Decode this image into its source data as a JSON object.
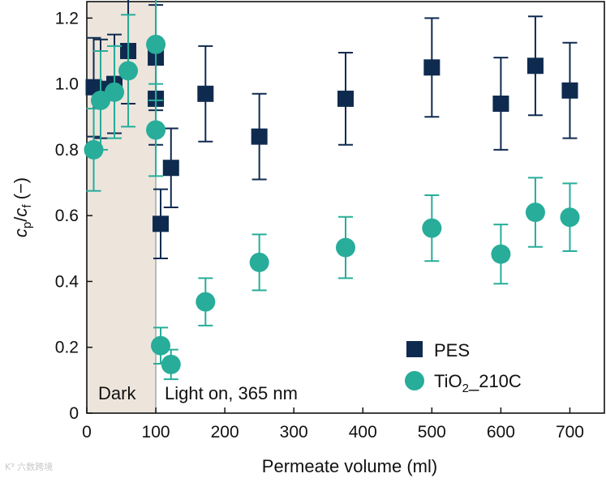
{
  "chart_data": {
    "type": "scatter",
    "xlabel": "Permeate volume (ml)",
    "ylabel": {
      "c1": "c",
      "s1": "p",
      "sep": "/",
      "c2": "c",
      "s2": "f",
      "unit": " (−)"
    },
    "xlim": [
      0,
      750
    ],
    "ylim": [
      0,
      1.25
    ],
    "x_ticks": [
      "0",
      "100",
      "200",
      "300",
      "400",
      "500",
      "600",
      "700"
    ],
    "x_tick_values": [
      0,
      100,
      200,
      300,
      400,
      500,
      600,
      700
    ],
    "y_ticks": [
      "0",
      "0.2",
      "0.4",
      "0.6",
      "0.8",
      "1.0",
      "1.2"
    ],
    "y_tick_values": [
      0,
      0.2,
      0.4,
      0.6,
      0.8,
      1.0,
      1.2
    ],
    "grid": false,
    "legend_position": "bottom-right",
    "shaded_region": {
      "x": [
        0,
        100
      ],
      "color": "#ede5dc"
    },
    "annotations": {
      "dark": "Dark",
      "light": "Light on, 365 nm"
    },
    "series": [
      {
        "name": "PES",
        "marker": "square",
        "color": "#0f2a4f",
        "points": [
          {
            "x": 10,
            "y": 0.99,
            "err": 0.15
          },
          {
            "x": 20,
            "y": 0.985,
            "err": 0.15
          },
          {
            "x": 40,
            "y": 1.0,
            "err": 0.15
          },
          {
            "x": 60,
            "y": 1.1,
            "err": 0.16
          },
          {
            "x": 100,
            "y": 1.08,
            "err": 0.16
          },
          {
            "x": 100,
            "y": 0.955,
            "err": 0.14
          },
          {
            "x": 107,
            "y": 0.575,
            "err": 0.105
          },
          {
            "x": 122,
            "y": 0.745,
            "err": 0.12
          },
          {
            "x": 172,
            "y": 0.97,
            "err": 0.145
          },
          {
            "x": 250,
            "y": 0.84,
            "err": 0.13
          },
          {
            "x": 375,
            "y": 0.955,
            "err": 0.14
          },
          {
            "x": 500,
            "y": 1.05,
            "err": 0.15
          },
          {
            "x": 600,
            "y": 0.94,
            "err": 0.14
          },
          {
            "x": 650,
            "y": 1.055,
            "err": 0.15
          },
          {
            "x": 700,
            "y": 0.98,
            "err": 0.145
          }
        ]
      },
      {
        "name": "TiO2_210C",
        "marker": "circle",
        "color": "#27ad9a",
        "points": [
          {
            "x": 10,
            "y": 0.8,
            "err": 0.125
          },
          {
            "x": 20,
            "y": 0.95,
            "err": 0.15
          },
          {
            "x": 40,
            "y": 0.975,
            "err": 0.14
          },
          {
            "x": 60,
            "y": 1.04,
            "err": 0.17
          },
          {
            "x": 100,
            "y": 1.12,
            "err": 0.17
          },
          {
            "x": 100,
            "y": 0.86,
            "err": 0.14
          },
          {
            "x": 107,
            "y": 0.205,
            "err": 0.055
          },
          {
            "x": 122,
            "y": 0.148,
            "err": 0.045
          },
          {
            "x": 172,
            "y": 0.338,
            "err": 0.072
          },
          {
            "x": 250,
            "y": 0.458,
            "err": 0.085
          },
          {
            "x": 375,
            "y": 0.503,
            "err": 0.093
          },
          {
            "x": 500,
            "y": 0.562,
            "err": 0.1
          },
          {
            "x": 600,
            "y": 0.483,
            "err": 0.09
          },
          {
            "x": 650,
            "y": 0.61,
            "err": 0.105
          },
          {
            "x": 700,
            "y": 0.595,
            "err": 0.103
          }
        ]
      }
    ],
    "legend": [
      {
        "label": "PES",
        "marker": "square"
      },
      {
        "label_main": "TiO",
        "label_sub": "2",
        "label_rest": "_210C",
        "marker": "circle"
      }
    ]
  },
  "watermark": "K³ 六数跨境"
}
